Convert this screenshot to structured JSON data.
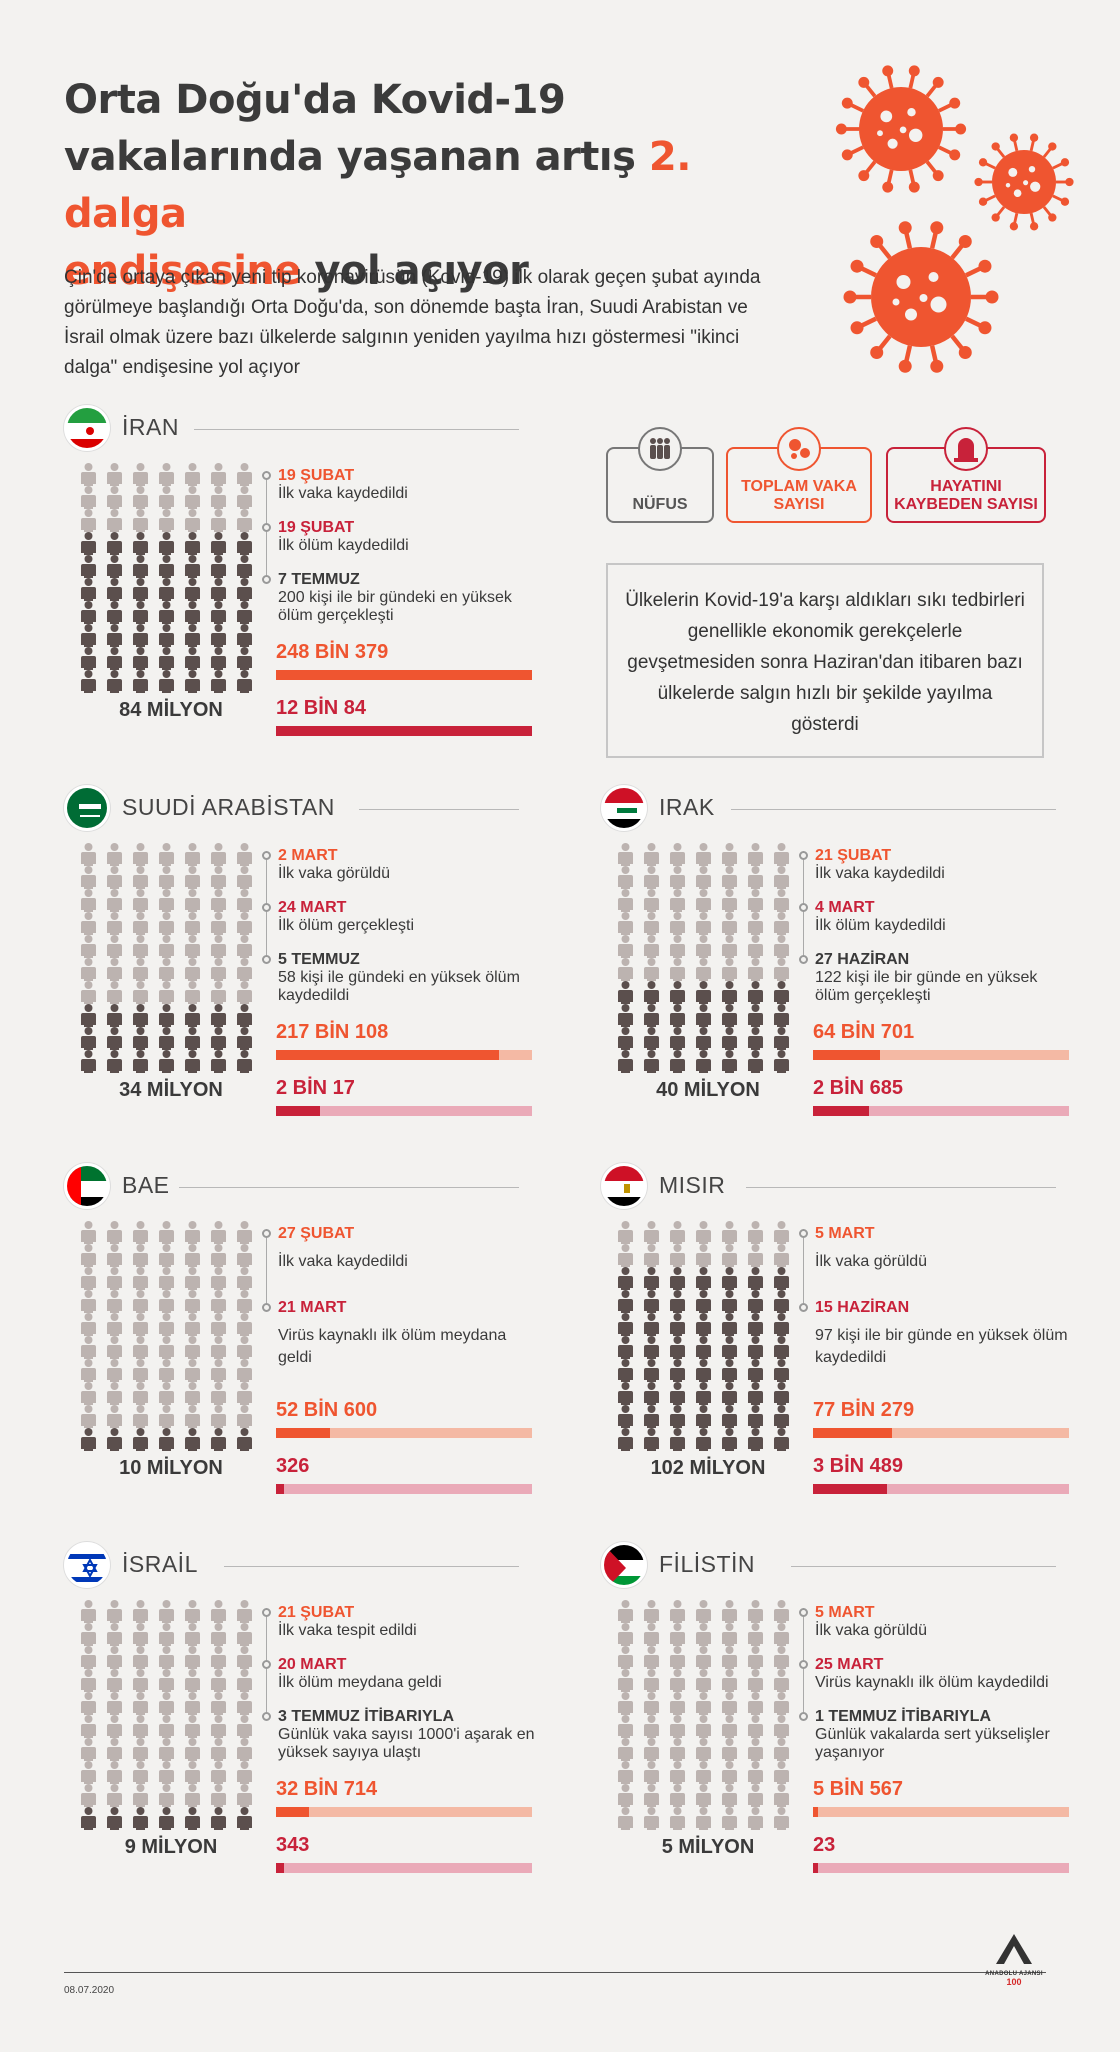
{
  "title": {
    "line1": "Orta Doğu'da Kovid-19",
    "line2a": "vakalarında yaşanan artış ",
    "line2b": "2. dalga",
    "line3a": "endişesine",
    "line3b": " yol açıyor"
  },
  "intro": "Çin'de ortaya çıkan yeni tip koronavirüsün (Kovid-19) ilk olarak geçen şubat ayında görülmeye başlandığı Orta Doğu'da, son dönemde başta İran, Suudi Arabistan ve İsrail olmak üzere bazı ülkelerde salgının yeniden yayılma hızı göstermesi \"ikinci dalga\" endişesine yol açıyor",
  "legend": {
    "population": "NÜFUS",
    "cases": "TOPLAM VAKA SAYISI",
    "deaths": "HAYATINI KAYBEDEN SAYISI"
  },
  "note": "Ülkelerin Kovid-19'a karşı aldıkları sıkı tedbirleri genellikle ekonomik gerekçelerle gevşetmesiden sonra Haziran'dan itibaren bazı ülkelerde salgın hızlı bir şekilde yayılma gösterdi",
  "colors": {
    "accent": "#ef5530",
    "death": "#c8223a",
    "case_light": "#f4b9a4",
    "death_light": "#eaaab8",
    "person_dark": "#5b4f4d",
    "person_light": "#bcb3b0"
  },
  "countries": [
    {
      "name": "İRAN",
      "flag": "iran-flag",
      "population": "84 MİLYON",
      "pop_rows_dark": 7,
      "events": [
        {
          "date": "19 ŞUBAT",
          "text": "İlk vaka kaydedildi"
        },
        {
          "date": "19 ŞUBAT",
          "text": "İlk ölüm kaydedildi"
        },
        {
          "date": "7 TEMMUZ",
          "text": "200 kişi ile bir gündeki en yüksek ölüm gerçekleşti"
        }
      ],
      "cases": "248 BİN 379",
      "cases_fill": 1.0,
      "deaths": "12 BİN 84",
      "deaths_fill": 1.0
    },
    {
      "name": "SUUDİ ARABİSTAN",
      "flag": "saudi-flag",
      "population": "34 MİLYON",
      "pop_rows_dark": 3,
      "events": [
        {
          "date": "2 MART",
          "text": "İlk vaka görüldü"
        },
        {
          "date": "24 MART",
          "text": "İlk ölüm gerçekleşti"
        },
        {
          "date": "5 TEMMUZ",
          "text": "58 kişi ile gündeki en yüksek ölüm kaydedildi"
        }
      ],
      "cases": "217 BİN 108",
      "cases_fill": 0.87,
      "deaths": "2 BİN 17",
      "deaths_fill": 0.17
    },
    {
      "name": "IRAK",
      "flag": "iraq-flag",
      "population": "40 MİLYON",
      "pop_rows_dark": 4,
      "events": [
        {
          "date": "21 ŞUBAT",
          "text": "İlk vaka kaydedildi"
        },
        {
          "date": "4 MART",
          "text": "İlk ölüm kaydedildi"
        },
        {
          "date": "27 HAZİRAN",
          "text": "122 kişi ile bir günde en yüksek ölüm gerçekleşti"
        }
      ],
      "cases": "64 BİN 701",
      "cases_fill": 0.26,
      "deaths": "2 BİN 685",
      "deaths_fill": 0.22
    },
    {
      "name": "BAE",
      "flag": "uae-flag",
      "population": "10 MİLYON",
      "pop_rows_dark": 1,
      "events": [
        {
          "date": "27 ŞUBAT",
          "text": "İlk vaka kaydedildi"
        },
        {
          "date": "21 MART",
          "text": "Virüs kaynaklı ilk ölüm meydana geldi"
        }
      ],
      "cases": "52 BİN 600",
      "cases_fill": 0.21,
      "deaths": "326",
      "deaths_fill": 0.03
    },
    {
      "name": "MISIR",
      "flag": "egypt-flag",
      "population": "102 MİLYON",
      "pop_rows_dark": 8,
      "events": [
        {
          "date": "5 MART",
          "text": "İlk vaka görüldü"
        },
        {
          "date": "15 HAZİRAN",
          "text": "97 kişi ile bir günde en yüksek ölüm kaydedildi"
        }
      ],
      "cases": "77 BİN 279",
      "cases_fill": 0.31,
      "deaths": "3 BİN 489",
      "deaths_fill": 0.29
    },
    {
      "name": "İSRAİL",
      "flag": "israel-flag",
      "population": "9 MİLYON",
      "pop_rows_dark": 1,
      "events": [
        {
          "date": "21 ŞUBAT",
          "text": "İlk vaka tespit edildi"
        },
        {
          "date": "20 MART",
          "text": "İlk ölüm meydana geldi"
        },
        {
          "date": "3 TEMMUZ İTİBARIYLA",
          "text": "Günlük vaka sayısı 1000'i aşarak en yüksek sayıya ulaştı"
        }
      ],
      "cases": "32 BİN 714",
      "cases_fill": 0.13,
      "deaths": "343",
      "deaths_fill": 0.03
    },
    {
      "name": "FİLİSTİN",
      "flag": "palestine-flag",
      "population": "5 MİLYON",
      "pop_rows_dark": 0,
      "events": [
        {
          "date": "5 MART",
          "text": "İlk vaka görüldü"
        },
        {
          "date": "25 MART",
          "text": "Virüs kaynaklı ilk ölüm kaydedildi"
        },
        {
          "date": "1 TEMMUZ İTİBARIYLA",
          "text": "Günlük vakalarda sert yükselişler yaşanıyor"
        }
      ],
      "cases": "5 BİN 567",
      "cases_fill": 0.02,
      "deaths": "23",
      "deaths_fill": 0.01
    }
  ],
  "date": "08.07.2020",
  "logo": {
    "name": "ANADOLU AJANSI",
    "mark": "AA",
    "anniversary": "100"
  }
}
